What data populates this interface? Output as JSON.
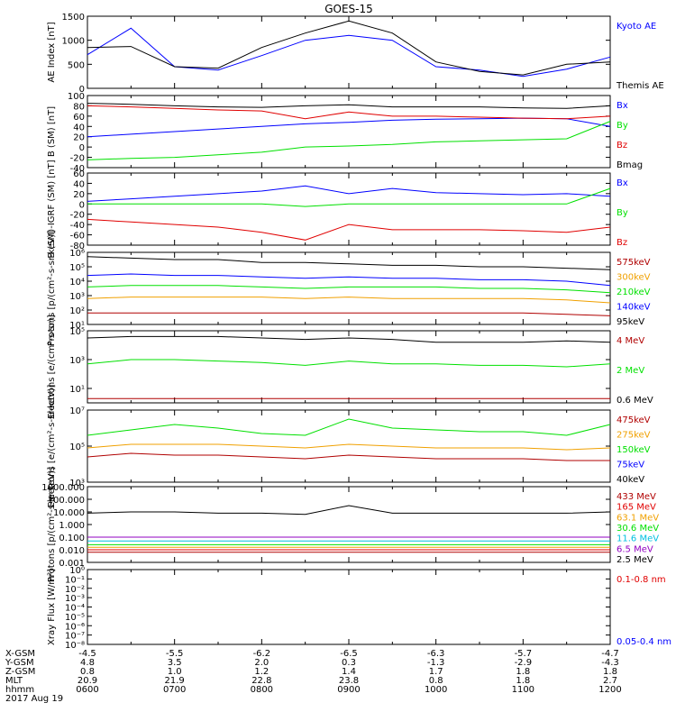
{
  "title": "GOES-15",
  "colors": {
    "black": "#000000",
    "blue": "#0000ff",
    "green": "#00e000",
    "red": "#e00000",
    "orange": "#f0a000",
    "darkred": "#b00000",
    "cyan": "#00c0e0",
    "purple": "#9000c0"
  },
  "chart_data": [
    {
      "type": "line",
      "ylabel": "AE Index [nT]",
      "ylim": [
        0,
        1500
      ],
      "yticks": [
        {
          "v": 0,
          "l": "0"
        },
        {
          "v": 500,
          "l": "500"
        },
        {
          "v": 1000,
          "l": "1000"
        },
        {
          "v": 1500,
          "l": "1500"
        }
      ],
      "x": [
        "0600",
        "0630",
        "0700",
        "0730",
        "0800",
        "0830",
        "0900",
        "0930",
        "1000",
        "1030",
        "1100",
        "1130",
        "1200"
      ],
      "series": [
        {
          "name": "Kyoto AE",
          "color": "#0000ff",
          "values": [
            700,
            1250,
            450,
            380,
            680,
            1000,
            1100,
            1000,
            450,
            380,
            250,
            400,
            650
          ]
        },
        {
          "name": "Themis AE",
          "color": "#000000",
          "values": [
            850,
            870,
            450,
            420,
            850,
            1150,
            1400,
            1150,
            550,
            350,
            280,
            500,
            550
          ]
        }
      ]
    },
    {
      "type": "line",
      "ylabel": "B (SM) [nT]",
      "ylim": [
        -40,
        100
      ],
      "yticks": [
        {
          "v": -40,
          "l": "-40"
        },
        {
          "v": -20,
          "l": "-20"
        },
        {
          "v": 0,
          "l": "0"
        },
        {
          "v": 20,
          "l": "20"
        },
        {
          "v": 40,
          "l": "40"
        },
        {
          "v": 60,
          "l": "60"
        },
        {
          "v": 80,
          "l": "80"
        },
        {
          "v": 100,
          "l": "100"
        }
      ],
      "series": [
        {
          "name": "Bx",
          "color": "#0000ff",
          "values": [
            20,
            25,
            30,
            35,
            40,
            45,
            48,
            52,
            54,
            55,
            56,
            55,
            40
          ]
        },
        {
          "name": "By",
          "color": "#00e000",
          "values": [
            -25,
            -22,
            -20,
            -15,
            -10,
            0,
            2,
            5,
            10,
            12,
            14,
            16,
            50
          ]
        },
        {
          "name": "Bz",
          "color": "#e00000",
          "values": [
            80,
            78,
            75,
            72,
            70,
            55,
            68,
            60,
            60,
            58,
            56,
            55,
            60
          ]
        },
        {
          "name": "Bmag",
          "color": "#000000",
          "values": [
            85,
            83,
            80,
            78,
            77,
            80,
            82,
            78,
            78,
            78,
            76,
            75,
            80
          ]
        }
      ]
    },
    {
      "type": "line",
      "ylabel": "B (SM)-IGRF (SM) [nT]",
      "ylim": [
        -80,
        60
      ],
      "yticks": [
        {
          "v": -80,
          "l": "-80"
        },
        {
          "v": -60,
          "l": "-60"
        },
        {
          "v": -40,
          "l": "-40"
        },
        {
          "v": -20,
          "l": "-20"
        },
        {
          "v": 0,
          "l": "0"
        },
        {
          "v": 20,
          "l": "20"
        },
        {
          "v": 40,
          "l": "40"
        },
        {
          "v": 60,
          "l": "60"
        }
      ],
      "series": [
        {
          "name": "Bx",
          "color": "#0000ff",
          "values": [
            5,
            10,
            15,
            20,
            25,
            35,
            20,
            30,
            22,
            20,
            18,
            20,
            15
          ]
        },
        {
          "name": "By",
          "color": "#00e000",
          "values": [
            0,
            0,
            0,
            0,
            0,
            -5,
            0,
            0,
            0,
            0,
            0,
            0,
            30
          ]
        },
        {
          "name": "Bz",
          "color": "#e00000",
          "values": [
            -30,
            -35,
            -40,
            -45,
            -55,
            -70,
            -40,
            -50,
            -50,
            -50,
            -52,
            -55,
            -45
          ]
        }
      ]
    },
    {
      "type": "line",
      "ylabel": "Protons [p/(cm²-s-sr-keV)]",
      "log": true,
      "ylim": [
        10,
        1000000
      ],
      "yticks": [
        {
          "v": 1,
          "l": "10¹"
        },
        {
          "v": 2,
          "l": "10²"
        },
        {
          "v": 3,
          "l": "10³"
        },
        {
          "v": 4,
          "l": "10⁴"
        },
        {
          "v": 5,
          "l": "10⁵"
        },
        {
          "v": 6,
          "l": "10⁶"
        }
      ],
      "series": [
        {
          "name": "575keV",
          "color": "#b00000",
          "values": [
            1.8,
            1.8,
            1.8,
            1.8,
            1.8,
            1.8,
            1.8,
            1.8,
            1.8,
            1.8,
            1.8,
            1.7,
            1.6
          ]
        },
        {
          "name": "300keV",
          "color": "#f0a000",
          "values": [
            2.8,
            2.9,
            2.9,
            2.9,
            2.9,
            2.8,
            2.9,
            2.8,
            2.8,
            2.8,
            2.8,
            2.7,
            2.5
          ]
        },
        {
          "name": "210keV",
          "color": "#00e000",
          "values": [
            3.6,
            3.7,
            3.7,
            3.7,
            3.6,
            3.5,
            3.6,
            3.6,
            3.6,
            3.5,
            3.5,
            3.4,
            3.2
          ]
        },
        {
          "name": "140keV",
          "color": "#0000ff",
          "values": [
            4.4,
            4.5,
            4.4,
            4.4,
            4.3,
            4.2,
            4.3,
            4.2,
            4.2,
            4.1,
            4.1,
            4.0,
            3.7
          ]
        },
        {
          "name": "95keV",
          "color": "#000000",
          "values": [
            5.7,
            5.6,
            5.5,
            5.5,
            5.3,
            5.3,
            5.2,
            5.1,
            5.1,
            5.0,
            5.0,
            4.9,
            4.8
          ]
        }
      ]
    },
    {
      "type": "line",
      "ylabel": "Electrons [e/(cm²-s-sr)]",
      "log": true,
      "ylim": [
        1,
        100000
      ],
      "yticks": [
        {
          "v": 1,
          "l": "10¹"
        },
        {
          "v": 3,
          "l": "10³"
        },
        {
          "v": 5,
          "l": "10⁵"
        }
      ],
      "series": [
        {
          "name": "4 MeV",
          "color": "#b00000",
          "values": [
            0.3,
            0.3,
            0.3,
            0.3,
            0.3,
            0.3,
            0.3,
            0.3,
            0.3,
            0.3,
            0.3,
            0.3,
            0.3
          ]
        },
        {
          "name": "2 MeV",
          "color": "#00e000",
          "values": [
            2.7,
            3.0,
            3.0,
            2.9,
            2.8,
            2.6,
            2.9,
            2.7,
            2.7,
            2.6,
            2.6,
            2.5,
            2.7
          ]
        },
        {
          "name": "0.6 MeV",
          "color": "#000000",
          "values": [
            4.5,
            4.6,
            4.6,
            4.6,
            4.5,
            4.4,
            4.5,
            4.4,
            4.2,
            4.2,
            4.2,
            4.3,
            4.2
          ]
        }
      ]
    },
    {
      "type": "line",
      "ylabel": "Electrons [e/(cm²-s-sr-keV)]",
      "log": true,
      "ylim": [
        1000,
        10000000
      ],
      "yticks": [
        {
          "v": 3,
          "l": "10³"
        },
        {
          "v": 5,
          "l": "10⁵"
        },
        {
          "v": 7,
          "l": "10⁷"
        }
      ],
      "series": [
        {
          "name": "475keV",
          "color": "#b00000",
          "values": [
            4.4,
            4.6,
            4.5,
            4.5,
            4.4,
            4.3,
            4.5,
            4.4,
            4.3,
            4.3,
            4.3,
            4.2,
            4.2
          ]
        },
        {
          "name": "275keV",
          "color": "#f0a000",
          "values": [
            4.9,
            5.1,
            5.1,
            5.1,
            5.0,
            4.9,
            5.1,
            5.0,
            4.9,
            4.9,
            4.9,
            4.8,
            4.9
          ]
        },
        {
          "name": "150keV",
          "color": "#00e000",
          "values": [
            5.6,
            5.9,
            6.2,
            6.0,
            5.7,
            5.6,
            6.5,
            6.0,
            5.9,
            5.8,
            5.8,
            5.6,
            6.2
          ]
        },
        {
          "name": "75keV",
          "color": "#0000ff",
          "values": [
            0,
            0,
            0,
            0,
            0,
            0,
            0,
            0,
            0,
            0,
            0,
            0,
            0
          ]
        },
        {
          "name": "40keV",
          "color": "#000000",
          "values": [
            0,
            0,
            0,
            0,
            0,
            0,
            0,
            0,
            0,
            0,
            0,
            0,
            0
          ]
        }
      ]
    },
    {
      "type": "line",
      "ylabel": "Protons [p/(cm²-s-sr-keV)]",
      "log": true,
      "ylim": [
        0.001,
        1000
      ],
      "yticks": [
        {
          "v": -3,
          "l": "0.001"
        },
        {
          "v": -2,
          "l": "0.010"
        },
        {
          "v": -1,
          "l": "0.100"
        },
        {
          "v": 0,
          "l": "1.000"
        },
        {
          "v": 1,
          "l": "10.000"
        },
        {
          "v": 2,
          "l": "100.000"
        },
        {
          "v": 3,
          "l": "1000.000"
        }
      ],
      "series": [
        {
          "name": "433 MeV",
          "color": "#b00000",
          "values": [
            -2.2,
            -2.2,
            -2.2,
            -2.2,
            -2.2,
            -2.2,
            -2.2,
            -2.2,
            -2.2,
            -2.2,
            -2.2,
            -2.2,
            -2.2
          ]
        },
        {
          "name": "165 MeV",
          "color": "#e00000",
          "values": [
            -2.0,
            -2.0,
            -2.0,
            -2.0,
            -2.0,
            -2.0,
            -2.0,
            -2.0,
            -2.0,
            -2.0,
            -2.0,
            -2.0,
            -2.0
          ]
        },
        {
          "name": "63.1 MeV",
          "color": "#f0a000",
          "values": [
            -1.8,
            -1.8,
            -1.8,
            -1.8,
            -1.8,
            -1.8,
            -1.8,
            -1.8,
            -1.8,
            -1.8,
            -1.8,
            -1.8,
            -1.8
          ]
        },
        {
          "name": "30.6 MeV",
          "color": "#00e000",
          "values": [
            -1.6,
            -1.6,
            -1.6,
            -1.6,
            -1.6,
            -1.6,
            -1.6,
            -1.6,
            -1.6,
            -1.6,
            -1.6,
            -1.6,
            -1.6
          ]
        },
        {
          "name": "11.6 MeV",
          "color": "#00c0e0",
          "values": [
            -1.3,
            -1.3,
            -1.3,
            -1.3,
            -1.3,
            -1.3,
            -1.3,
            -1.3,
            -1.3,
            -1.3,
            -1.3,
            -1.3,
            -1.3
          ]
        },
        {
          "name": "6.5 MeV",
          "color": "#9000c0",
          "values": [
            -1.0,
            -1.0,
            -1.0,
            -1.0,
            -1.0,
            -1.0,
            -1.0,
            -1.0,
            -1.0,
            -1.0,
            -1.0,
            -1.0,
            -1.0
          ]
        },
        {
          "name": "2.5 MeV",
          "color": "#000000",
          "values": [
            0.9,
            1.0,
            1.0,
            0.9,
            0.9,
            0.8,
            1.5,
            0.9,
            0.9,
            0.9,
            0.9,
            0.9,
            1.0
          ]
        }
      ]
    },
    {
      "type": "line",
      "ylabel": "Xray Flux [W/m²]",
      "log": true,
      "ylim": [
        1e-08,
        1
      ],
      "yticks": [
        {
          "v": 0,
          "l": "10⁰"
        },
        {
          "v": -1,
          "l": "10⁻¹"
        },
        {
          "v": -2,
          "l": "10⁻²"
        },
        {
          "v": -3,
          "l": "10⁻³"
        },
        {
          "v": -4,
          "l": "10⁻⁴"
        },
        {
          "v": -5,
          "l": "10⁻⁵"
        },
        {
          "v": -6,
          "l": "10⁻⁶"
        },
        {
          "v": -7,
          "l": "10⁻⁷"
        },
        {
          "v": -8,
          "l": "10⁻⁸"
        }
      ],
      "series": [
        {
          "name": "0.1-0.8 nm",
          "color": "#e00000",
          "values": []
        },
        {
          "name": "0.05-0.4 nm",
          "color": "#0000ff",
          "values": []
        }
      ]
    }
  ],
  "axis_footer": {
    "rows": [
      {
        "label": "X-GSM",
        "values": [
          "-4.5",
          "-5.5",
          "-6.2",
          "-6.5",
          "-6.3",
          "-5.7",
          "-4.7"
        ]
      },
      {
        "label": "Y-GSM",
        "values": [
          "4.8",
          "3.5",
          "2.0",
          "0.3",
          "-1.3",
          "-2.9",
          "-4.3"
        ]
      },
      {
        "label": "Z-GSM",
        "values": [
          "0.8",
          "1.0",
          "1.2",
          "1.4",
          "1.7",
          "1.8",
          "1.8"
        ]
      },
      {
        "label": "MLT",
        "values": [
          "20.9",
          "21.9",
          "22.8",
          "23.8",
          "0.8",
          "1.8",
          "2.7"
        ]
      },
      {
        "label": "hhmm",
        "values": [
          "0600",
          "0700",
          "0800",
          "0900",
          "1000",
          "1100",
          "1200"
        ]
      }
    ],
    "date": "2017 Aug 19"
  }
}
